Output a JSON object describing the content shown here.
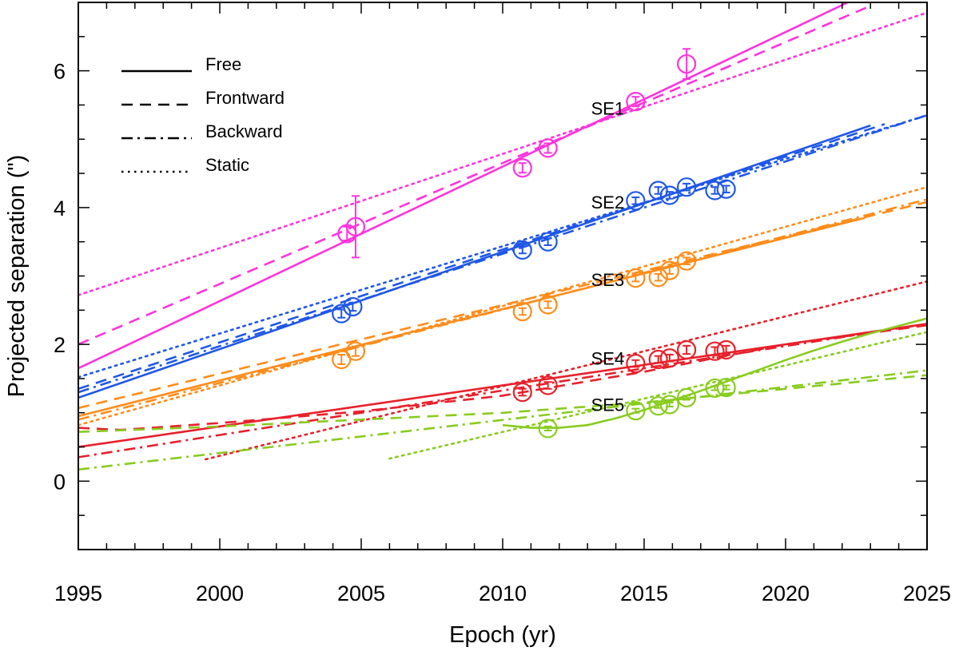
{
  "chart_data": {
    "type": "line",
    "title": "",
    "xlabel": "Epoch (yr)",
    "ylabel": "Projected separation (\")",
    "xlim": [
      1995,
      2025
    ],
    "ylim": [
      -1,
      7
    ],
    "xticks": [
      1995,
      2000,
      2005,
      2010,
      2015,
      2020,
      2025
    ],
    "xtick_labels": [
      "1995",
      "2000",
      "2005",
      "2010",
      "2015",
      "2020",
      "2025"
    ],
    "yticks": [
      0,
      2,
      4,
      6
    ],
    "ytick_labels": [
      "0",
      "2",
      "4",
      "6"
    ],
    "grid": false,
    "legend": {
      "position": "top-left",
      "entries": [
        {
          "label": "Free",
          "style": "solid"
        },
        {
          "label": "Frontward",
          "style": "dashed"
        },
        {
          "label": "Backward",
          "style": "dashdot"
        },
        {
          "label": "Static",
          "style": "dotted"
        }
      ]
    },
    "series": [
      {
        "name": "SE1",
        "color": "#ff33dd",
        "label_at": [
          2014.3,
          5.45
        ],
        "points": [
          {
            "x": 2004.5,
            "y": 3.62,
            "err": 0.1
          },
          {
            "x": 2004.8,
            "y": 3.72,
            "err": 0.45
          },
          {
            "x": 2010.7,
            "y": 4.58,
            "err": 0.07
          },
          {
            "x": 2011.6,
            "y": 4.87,
            "err": 0.07
          },
          {
            "x": 2014.7,
            "y": 5.55,
            "err": 0.07
          },
          {
            "x": 2016.5,
            "y": 6.1,
            "err": 0.22
          }
        ],
        "fits": {
          "free": [
            [
              1995,
              1.65
            ],
            [
              2022.2,
              7.0
            ]
          ],
          "frontward": [
            [
              1995,
              2.0
            ],
            [
              2023.0,
              6.95
            ]
          ],
          "static": [
            [
              1995,
              2.72
            ],
            [
              2025,
              6.85
            ]
          ]
        }
      },
      {
        "name": "SE2",
        "color": "#1f57e8",
        "label_at": [
          2014.3,
          4.08
        ],
        "points": [
          {
            "x": 2004.3,
            "y": 2.45,
            "err": 0.06
          },
          {
            "x": 2004.7,
            "y": 2.55,
            "err": 0.06
          },
          {
            "x": 2010.7,
            "y": 3.38,
            "err": 0.05
          },
          {
            "x": 2011.6,
            "y": 3.5,
            "err": 0.05
          },
          {
            "x": 2014.7,
            "y": 4.1,
            "err": 0.05
          },
          {
            "x": 2015.5,
            "y": 4.25,
            "err": 0.05
          },
          {
            "x": 2015.9,
            "y": 4.18,
            "err": 0.05
          },
          {
            "x": 2016.5,
            "y": 4.3,
            "err": 0.05
          },
          {
            "x": 2017.5,
            "y": 4.25,
            "err": 0.05
          },
          {
            "x": 2017.9,
            "y": 4.27,
            "err": 0.05
          }
        ],
        "fits": {
          "free": [
            [
              1995,
              1.22
            ],
            [
              2023,
              5.2
            ]
          ],
          "frontward": [
            [
              1995,
              1.35
            ],
            [
              2023.5,
              5.22
            ]
          ],
          "backward": [
            [
              1995,
              1.3
            ],
            [
              2025,
              5.35
            ]
          ],
          "static": [
            [
              1995,
              1.52
            ],
            [
              2025,
              5.35
            ]
          ]
        }
      },
      {
        "name": "SE3",
        "color": "#ff8c1a",
        "label_at": [
          2014.3,
          2.95
        ],
        "points": [
          {
            "x": 2004.3,
            "y": 1.78,
            "err": 0.07
          },
          {
            "x": 2004.8,
            "y": 1.9,
            "err": 0.07
          },
          {
            "x": 2010.7,
            "y": 2.48,
            "err": 0.05
          },
          {
            "x": 2011.6,
            "y": 2.58,
            "err": 0.05
          },
          {
            "x": 2014.7,
            "y": 2.97,
            "err": 0.05
          },
          {
            "x": 2015.5,
            "y": 2.98,
            "err": 0.05
          },
          {
            "x": 2015.9,
            "y": 3.08,
            "err": 0.05
          },
          {
            "x": 2016.5,
            "y": 3.22,
            "err": 0.05
          }
        ],
        "fits": {
          "free": [
            [
              1995,
              0.95
            ],
            [
              2022.8,
              3.85
            ]
          ],
          "frontward": [
            [
              1995,
              1.07
            ],
            [
              2025,
              4.08
            ]
          ],
          "backward": [
            [
              1995,
              0.9
            ],
            [
              2025,
              4.12
            ]
          ],
          "static": [
            [
              1995,
              0.82
            ],
            [
              2025,
              4.3
            ]
          ]
        }
      },
      {
        "name": "SE4",
        "color": "#e8202a",
        "label_at": [
          2014.3,
          1.8
        ],
        "points": [
          {
            "x": 2010.7,
            "y": 1.3,
            "err": 0.05
          },
          {
            "x": 2011.6,
            "y": 1.4,
            "err": 0.05
          },
          {
            "x": 2014.7,
            "y": 1.72,
            "err": 0.05
          },
          {
            "x": 2015.5,
            "y": 1.78,
            "err": 0.05
          },
          {
            "x": 2015.9,
            "y": 1.8,
            "err": 0.05
          },
          {
            "x": 2016.5,
            "y": 1.92,
            "err": 0.06
          },
          {
            "x": 2017.5,
            "y": 1.9,
            "err": 0.06
          },
          {
            "x": 2017.9,
            "y": 1.92,
            "err": 0.06
          }
        ],
        "fits": {
          "free": [
            [
              1995,
              0.5
            ],
            [
              2025,
              2.3
            ]
          ],
          "frontward": [
            [
              1995,
              0.78
            ],
            [
              1996.5,
              0.75
            ],
            [
              2000,
              0.85
            ],
            [
              2005,
              1.02
            ],
            [
              2010,
              1.25
            ],
            [
              2015,
              1.6
            ],
            [
              2020,
              2.0
            ],
            [
              2025,
              2.28
            ]
          ],
          "backward": [
            [
              1995,
              0.35
            ],
            [
              2025,
              2.3
            ]
          ],
          "static": [
            [
              1999.5,
              0.32
            ],
            [
              2025,
              2.92
            ]
          ]
        }
      },
      {
        "name": "SE5",
        "color": "#88cc1f",
        "label_at": [
          2014.3,
          1.12
        ],
        "points": [
          {
            "x": 2011.6,
            "y": 0.77,
            "err": 0.03
          },
          {
            "x": 2014.7,
            "y": 1.03,
            "err": 0.03
          },
          {
            "x": 2015.5,
            "y": 1.1,
            "err": 0.03
          },
          {
            "x": 2015.9,
            "y": 1.12,
            "err": 0.03
          },
          {
            "x": 2016.5,
            "y": 1.22,
            "err": 0.03
          },
          {
            "x": 2017.5,
            "y": 1.36,
            "err": 0.03
          },
          {
            "x": 2017.9,
            "y": 1.37,
            "err": 0.03
          }
        ],
        "fits": {
          "free": [
            [
              2010,
              0.82
            ],
            [
              2011,
              0.78
            ],
            [
              2012,
              0.78
            ],
            [
              2013,
              0.82
            ],
            [
              2014,
              0.92
            ],
            [
              2015,
              1.04
            ],
            [
              2016,
              1.18
            ],
            [
              2017,
              1.32
            ],
            [
              2018,
              1.47
            ],
            [
              2019,
              1.62
            ],
            [
              2020,
              1.77
            ],
            [
              2021,
              1.91
            ],
            [
              2022,
              2.04
            ],
            [
              2023,
              2.16
            ],
            [
              2024,
              2.27
            ],
            [
              2025,
              2.38
            ]
          ],
          "frontward": [
            [
              1995,
              0.72
            ],
            [
              2000,
              0.8
            ],
            [
              2005,
              0.9
            ],
            [
              2010,
              1.0
            ],
            [
              2015,
              1.15
            ],
            [
              2020,
              1.35
            ],
            [
              2025,
              1.55
            ]
          ],
          "backward": [
            [
              1995,
              0.17
            ],
            [
              2025,
              1.62
            ]
          ],
          "static": [
            [
              2006,
              0.33
            ],
            [
              2025,
              2.18
            ]
          ]
        }
      }
    ]
  }
}
